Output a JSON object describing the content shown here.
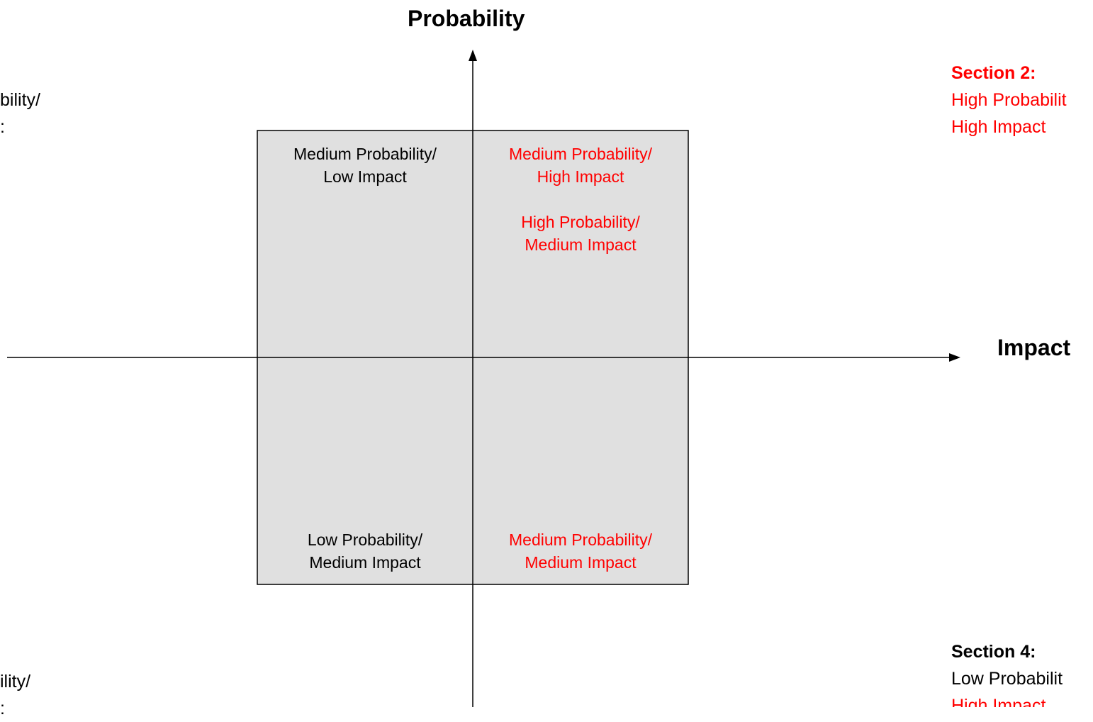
{
  "axes": {
    "y_title": "Probability",
    "x_title": "Impact"
  },
  "quadrants": {
    "top_left": [
      "Medium Probability/",
      "Low Impact"
    ],
    "top_right_1": [
      "Medium Probability/",
      "High Impact"
    ],
    "top_right_2": [
      "High Probability/",
      "Medium Impact"
    ],
    "bottom_left": [
      "Low Probability/",
      "Medium Impact"
    ],
    "bottom_right": [
      "Medium Probability/",
      "Medium Impact"
    ]
  },
  "sections": {
    "left_top": [
      "bility/",
      ":"
    ],
    "left_bottom": [
      "ility/",
      ":"
    ],
    "right_top": {
      "heading": "Section 2:",
      "lines": [
        "High Probabilit",
        "High Impact"
      ]
    },
    "right_bottom": {
      "heading": "Section 4:",
      "lines": [
        "Low Probabilit",
        "High Impact"
      ]
    }
  },
  "colors": {
    "highlight": "#ff0000",
    "matrix_fill": "#e0e0e0",
    "line": "#000000"
  }
}
